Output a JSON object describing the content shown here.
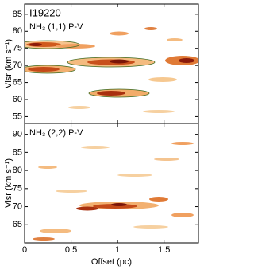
{
  "chart_data": [
    {
      "type": "pv",
      "title": "I19220",
      "label": "NH₃ (1,1) P-V",
      "ylabel": "Vlsr (km s⁻¹)",
      "xlim": [
        0,
        1.87
      ],
      "xticks": [
        0,
        0.5,
        1,
        1.5
      ],
      "show_xticklabels": false,
      "ylim": [
        53,
        88
      ],
      "yticks": [
        55,
        60,
        65,
        70,
        75,
        80,
        85
      ]
    },
    {
      "type": "pv",
      "label": "NH₃ (2,2) P-V",
      "ylabel": "Vlsr (km s⁻¹)",
      "xlabel": "Offset (pc)",
      "xlim": [
        0,
        1.87
      ],
      "xticks": [
        0,
        0.5,
        1,
        1.5
      ],
      "show_xticklabels": true,
      "ylim": [
        60,
        93
      ],
      "yticks": [
        65,
        70,
        75,
        80,
        85,
        90
      ]
    }
  ]
}
